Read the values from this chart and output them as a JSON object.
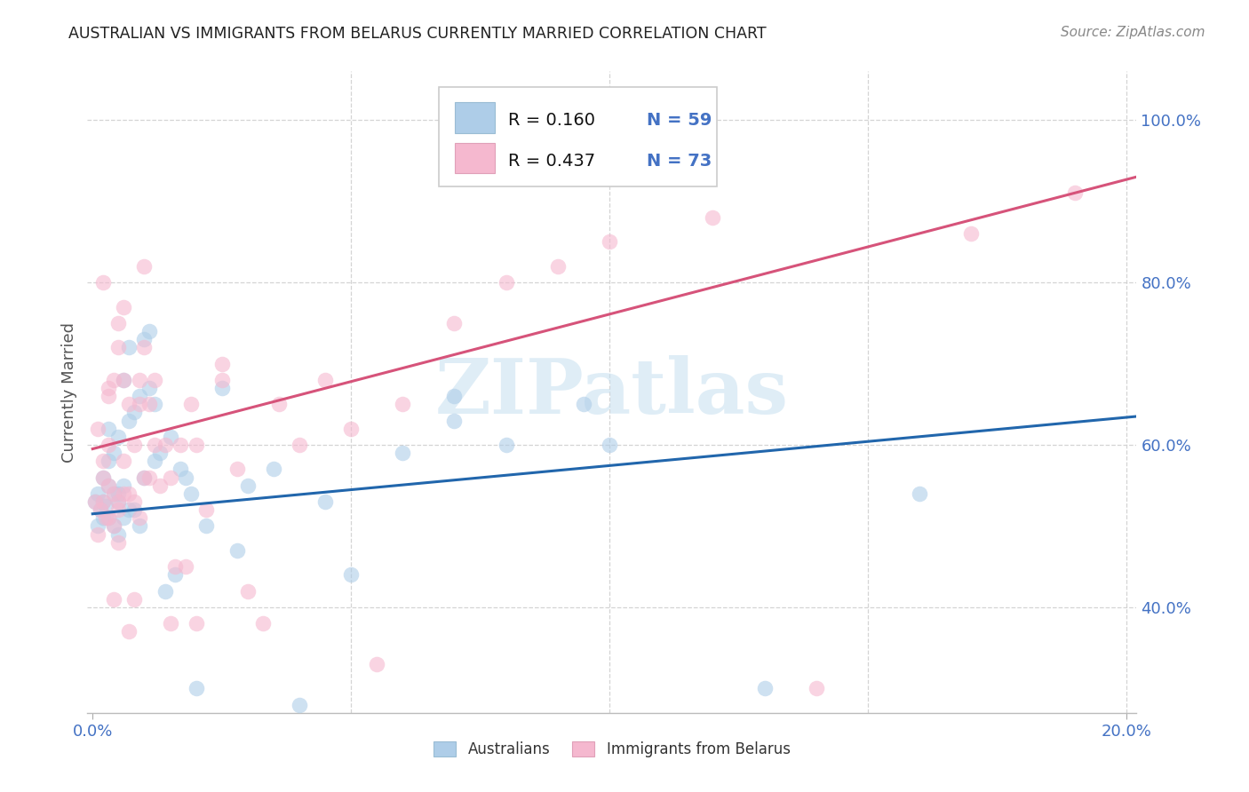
{
  "title": "AUSTRALIAN VS IMMIGRANTS FROM BELARUS CURRENTLY MARRIED CORRELATION CHART",
  "source": "Source: ZipAtlas.com",
  "ylabel": "Currently Married",
  "yticks": [
    0.4,
    0.6,
    0.8,
    1.0
  ],
  "ytick_labels": [
    "40.0%",
    "60.0%",
    "80.0%",
    "100.0%"
  ],
  "xtick_labels": [
    "0.0%",
    "20.0%"
  ],
  "xlim": [
    -0.001,
    0.202
  ],
  "ylim": [
    0.27,
    1.06
  ],
  "legend_r_blue": "R = 0.160",
  "legend_n_blue": "N = 59",
  "legend_r_pink": "R = 0.437",
  "legend_n_pink": "N = 73",
  "legend_label_blue": "Australians",
  "legend_label_pink": "Immigrants from Belarus",
  "color_blue": "#aecde8",
  "color_pink": "#f5b8cf",
  "line_color_blue": "#2166ac",
  "line_color_pink": "#d6537a",
  "watermark": "ZIPatlas",
  "blue_scatter_x": [
    0.0005,
    0.001,
    0.001,
    0.0015,
    0.002,
    0.002,
    0.002,
    0.0025,
    0.003,
    0.003,
    0.003,
    0.003,
    0.004,
    0.004,
    0.004,
    0.005,
    0.005,
    0.005,
    0.005,
    0.006,
    0.006,
    0.006,
    0.007,
    0.007,
    0.007,
    0.008,
    0.008,
    0.009,
    0.009,
    0.01,
    0.01,
    0.011,
    0.011,
    0.012,
    0.012,
    0.013,
    0.014,
    0.015,
    0.016,
    0.017,
    0.018,
    0.019,
    0.02,
    0.022,
    0.025,
    0.028,
    0.03,
    0.035,
    0.04,
    0.045,
    0.05,
    0.06,
    0.07,
    0.08,
    0.095,
    0.1,
    0.13,
    0.16,
    0.07
  ],
  "blue_scatter_y": [
    0.53,
    0.5,
    0.54,
    0.52,
    0.51,
    0.56,
    0.53,
    0.525,
    0.51,
    0.55,
    0.58,
    0.62,
    0.5,
    0.54,
    0.59,
    0.49,
    0.53,
    0.61,
    0.54,
    0.51,
    0.55,
    0.68,
    0.52,
    0.63,
    0.72,
    0.52,
    0.64,
    0.5,
    0.66,
    0.73,
    0.56,
    0.67,
    0.74,
    0.65,
    0.58,
    0.59,
    0.42,
    0.61,
    0.44,
    0.57,
    0.56,
    0.54,
    0.3,
    0.5,
    0.67,
    0.47,
    0.55,
    0.57,
    0.28,
    0.53,
    0.44,
    0.59,
    0.63,
    0.6,
    0.65,
    0.6,
    0.3,
    0.54,
    0.66
  ],
  "pink_scatter_x": [
    0.0005,
    0.001,
    0.001,
    0.0015,
    0.002,
    0.002,
    0.002,
    0.0025,
    0.003,
    0.003,
    0.003,
    0.003,
    0.004,
    0.004,
    0.004,
    0.005,
    0.005,
    0.005,
    0.005,
    0.006,
    0.006,
    0.006,
    0.007,
    0.007,
    0.008,
    0.008,
    0.009,
    0.009,
    0.01,
    0.01,
    0.011,
    0.011,
    0.012,
    0.013,
    0.014,
    0.015,
    0.016,
    0.017,
    0.018,
    0.019,
    0.02,
    0.022,
    0.025,
    0.028,
    0.03,
    0.033,
    0.036,
    0.04,
    0.045,
    0.05,
    0.055,
    0.06,
    0.07,
    0.08,
    0.09,
    0.1,
    0.12,
    0.14,
    0.002,
    0.003,
    0.004,
    0.005,
    0.006,
    0.007,
    0.008,
    0.009,
    0.01,
    0.012,
    0.015,
    0.02,
    0.025,
    0.17,
    0.19
  ],
  "pink_scatter_y": [
    0.53,
    0.49,
    0.62,
    0.52,
    0.56,
    0.58,
    0.53,
    0.51,
    0.51,
    0.55,
    0.6,
    0.66,
    0.5,
    0.54,
    0.68,
    0.48,
    0.53,
    0.72,
    0.52,
    0.58,
    0.77,
    0.54,
    0.54,
    0.65,
    0.53,
    0.6,
    0.51,
    0.65,
    0.56,
    0.72,
    0.56,
    0.65,
    0.6,
    0.55,
    0.6,
    0.56,
    0.45,
    0.6,
    0.45,
    0.65,
    0.6,
    0.52,
    0.68,
    0.57,
    0.42,
    0.38,
    0.65,
    0.6,
    0.68,
    0.62,
    0.33,
    0.65,
    0.75,
    0.8,
    0.82,
    0.85,
    0.88,
    0.3,
    0.8,
    0.67,
    0.41,
    0.75,
    0.68,
    0.37,
    0.41,
    0.68,
    0.82,
    0.68,
    0.38,
    0.38,
    0.7,
    0.86,
    0.91
  ],
  "blue_line_x": [
    0.0,
    0.202
  ],
  "blue_line_y": [
    0.515,
    0.635
  ],
  "pink_line_x": [
    0.0,
    0.202
  ],
  "pink_line_y": [
    0.595,
    0.93
  ],
  "background_color": "#ffffff",
  "title_color": "#222222",
  "axis_tick_color": "#4472c4",
  "grid_color": "#d0d0d0",
  "watermark_color": "#c5dff0",
  "watermark_alpha": 0.55,
  "legend_text_dark": "#111111",
  "legend_text_blue": "#4472c4"
}
